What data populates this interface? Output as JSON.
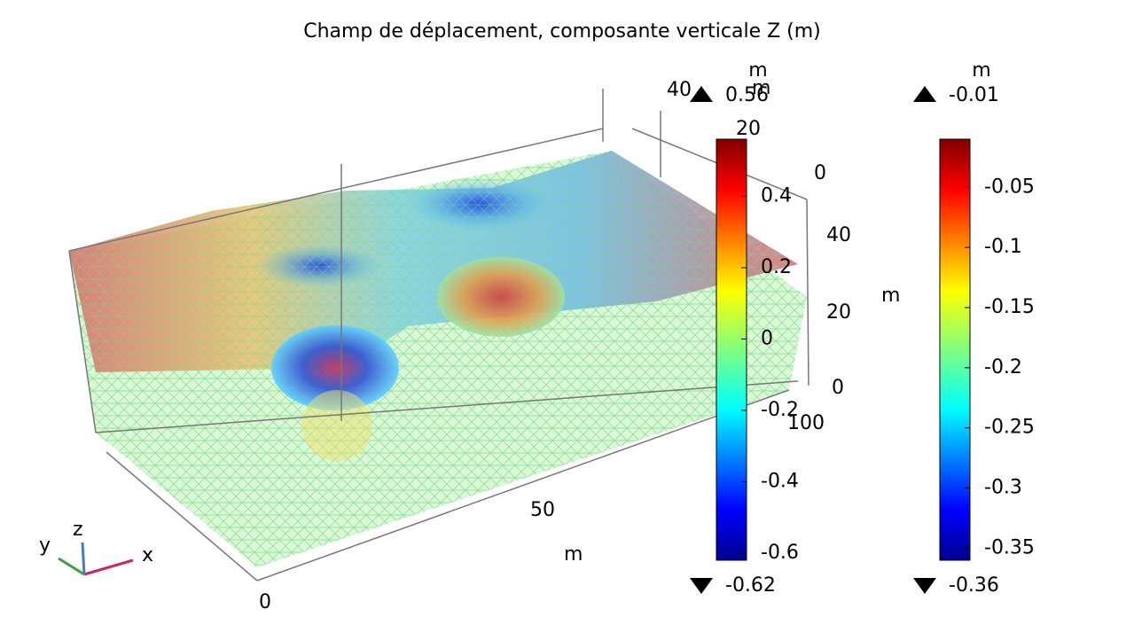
{
  "title": "Champ de déplacement, composante verticale Z (m)",
  "axes_3d": {
    "labels": [
      "40",
      "m",
      "20",
      "0",
      "40",
      "m",
      "20",
      "0",
      "100",
      "50",
      "m",
      "0"
    ],
    "triad": [
      "x",
      "y",
      "z"
    ]
  },
  "colorbars": [
    {
      "unit": "m",
      "max": 0.56,
      "min": -0.62,
      "ticks": [
        0.4,
        0.2,
        0,
        -0.2,
        -0.4,
        -0.6
      ]
    },
    {
      "unit": "m",
      "max": -0.01,
      "min": -0.36,
      "ticks": [
        -0.05,
        -0.1,
        -0.15,
        -0.2,
        -0.25,
        -0.3,
        -0.35
      ]
    }
  ]
}
